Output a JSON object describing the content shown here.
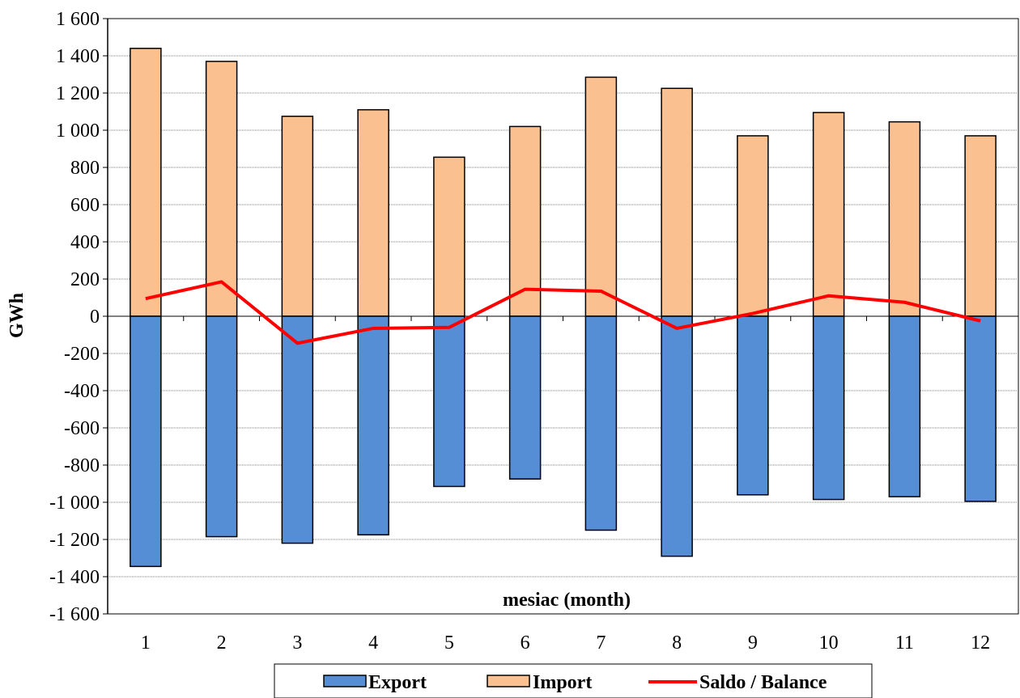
{
  "chart_data": {
    "type": "bar",
    "stacked": true,
    "categories": [
      "1",
      "2",
      "3",
      "4",
      "5",
      "6",
      "7",
      "8",
      "9",
      "10",
      "11",
      "12"
    ],
    "series": [
      {
        "name": "Export",
        "type": "bar",
        "color": "#558ED5",
        "values": [
          -1345,
          -1185,
          -1220,
          -1175,
          -915,
          -875,
          -1150,
          -1290,
          -960,
          -985,
          -970,
          -995
        ]
      },
      {
        "name": "Import",
        "type": "bar",
        "color": "#FAC090",
        "values": [
          1440,
          1370,
          1075,
          1110,
          855,
          1020,
          1285,
          1225,
          970,
          1095,
          1045,
          970
        ]
      },
      {
        "name": "Saldo / Balance",
        "type": "line",
        "color": "#FF0000",
        "values": [
          95,
          185,
          -145,
          -65,
          -60,
          145,
          135,
          -65,
          15,
          110,
          75,
          -25
        ]
      }
    ],
    "xlabel": "mesiac (month)",
    "ylabel": "GWh",
    "ylim": [
      -1600,
      1600
    ],
    "yticks": [
      1600,
      1400,
      1200,
      1000,
      800,
      600,
      400,
      200,
      0,
      -200,
      -400,
      -600,
      -800,
      -1000,
      -1200,
      -1400,
      -1600
    ],
    "ytick_labels": [
      "1 600",
      "1 400",
      "1 200",
      "1 000",
      "800",
      "600",
      "400",
      "200",
      "0",
      "-200",
      "-400",
      "-600",
      "-800",
      "-1 000",
      "-1 200",
      "-1 400",
      "-1 600"
    ],
    "grid": true,
    "legend": "bottom"
  }
}
